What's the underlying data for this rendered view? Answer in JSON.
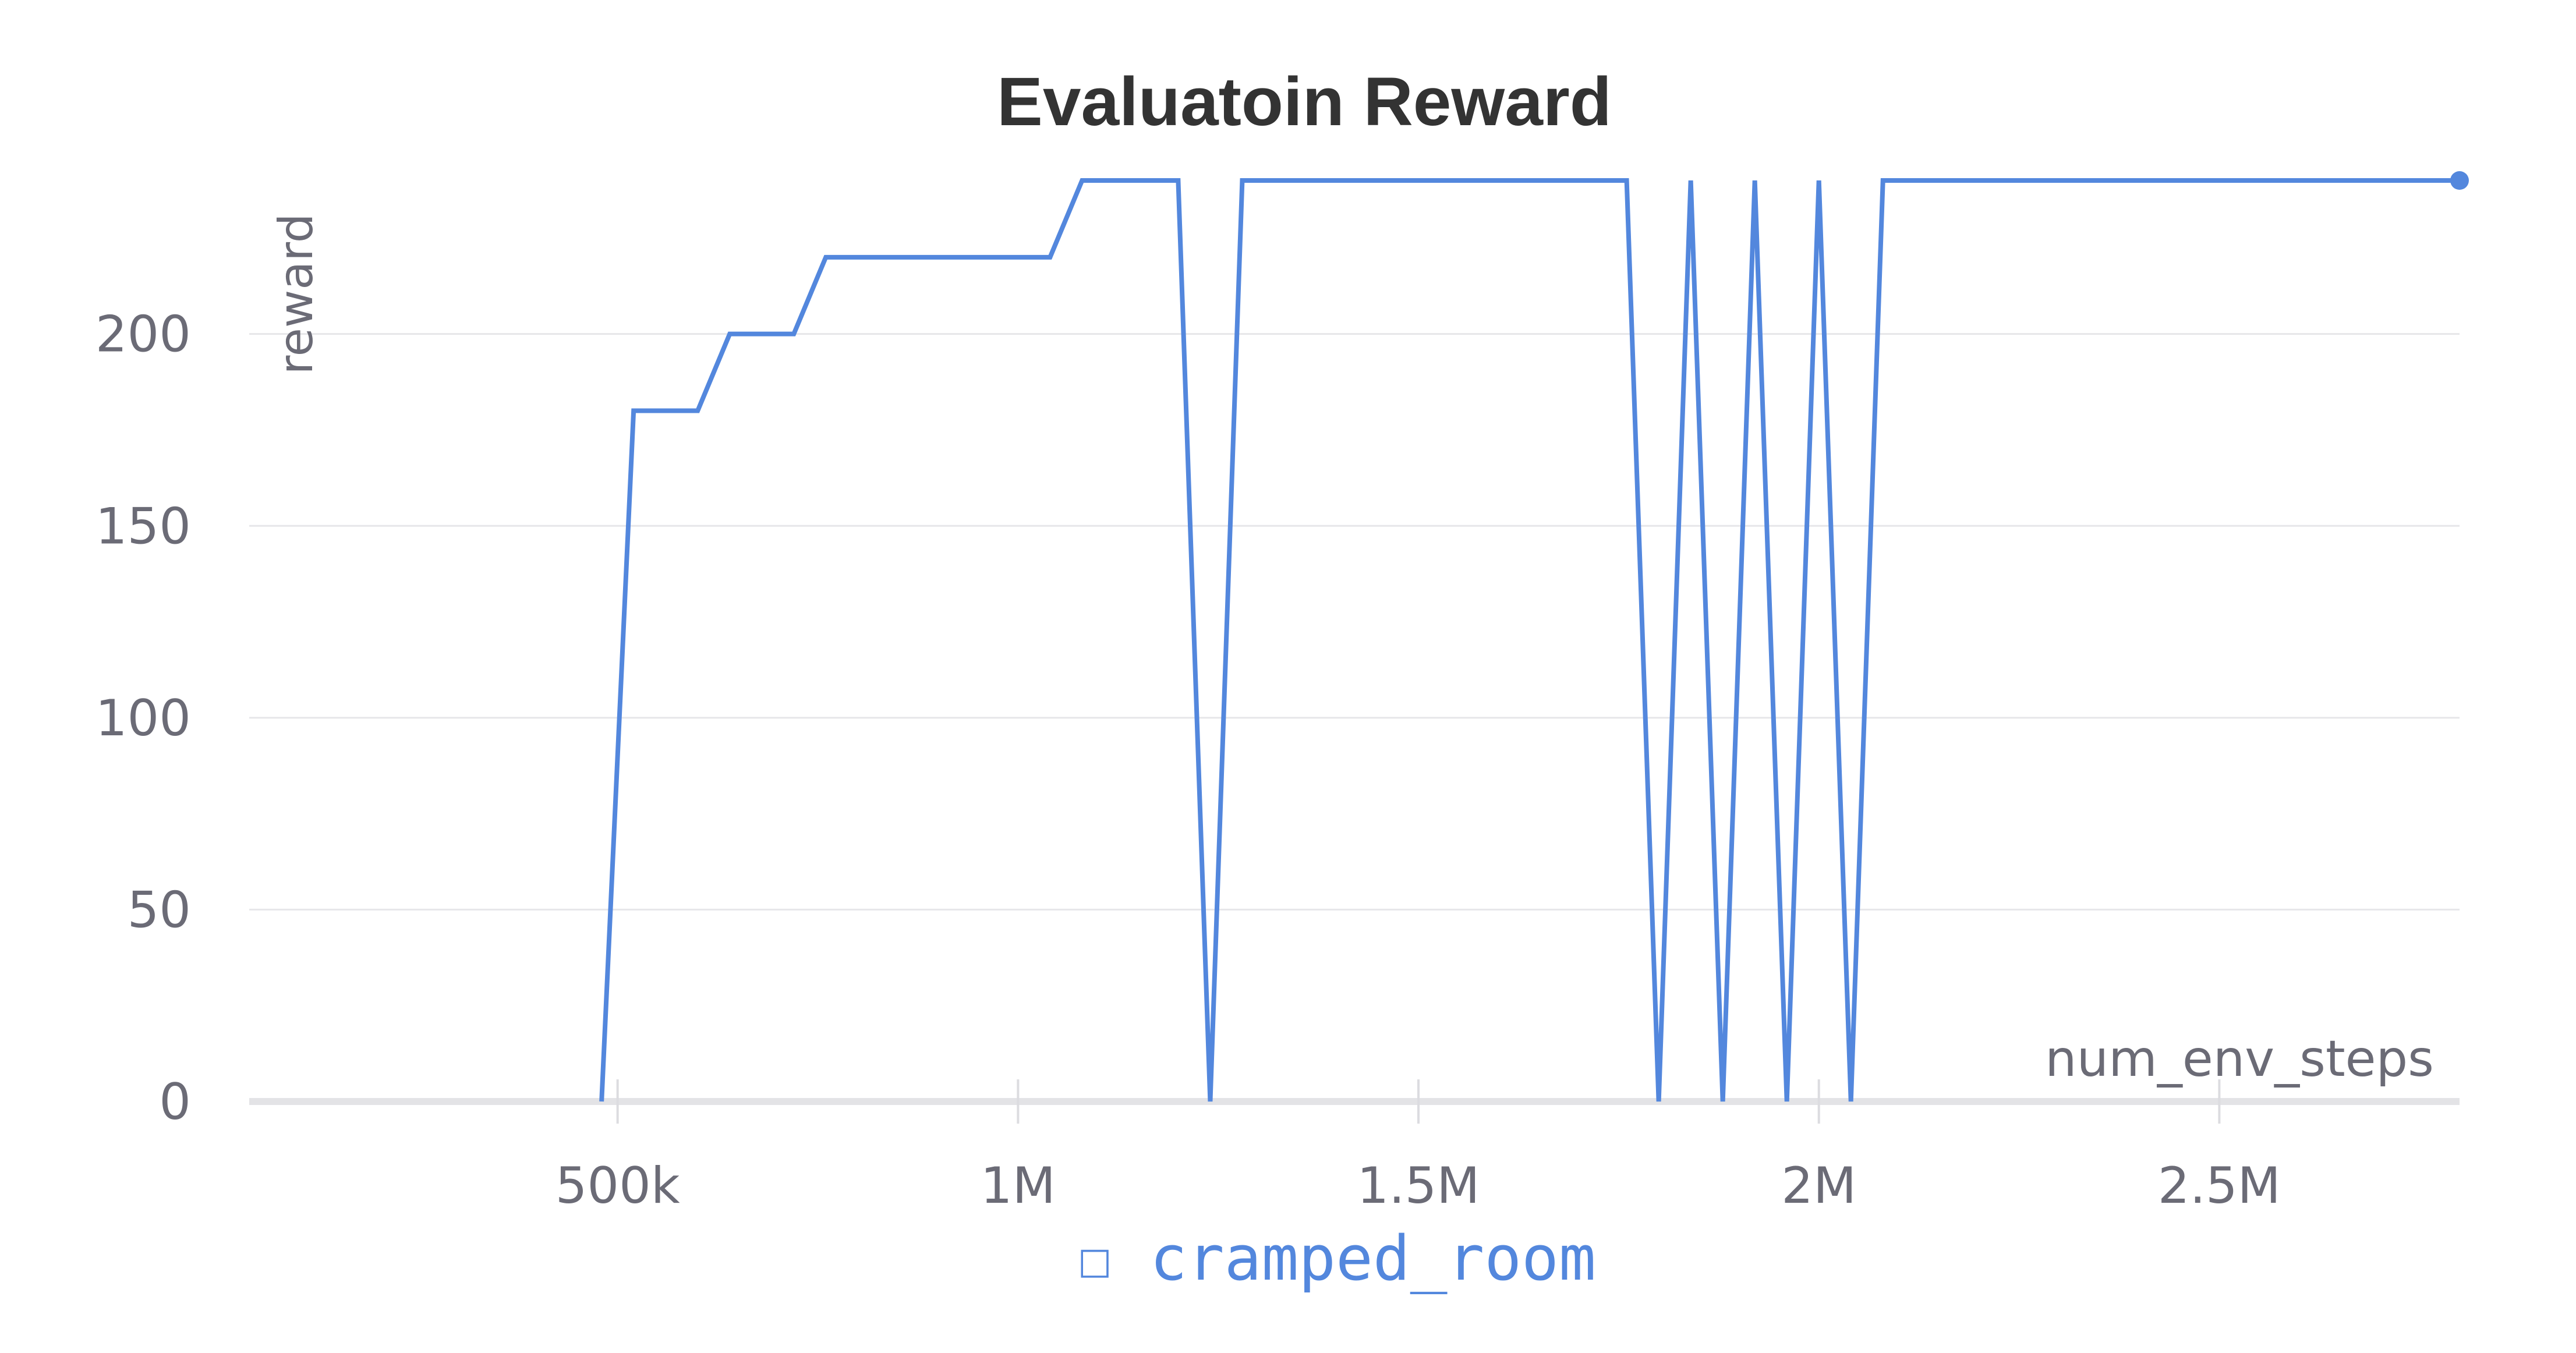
{
  "chart_data": {
    "type": "line",
    "title": "Evaluatoin Reward",
    "xlabel": "num_env_steps",
    "ylabel": "reward",
    "xlim": [
      40000,
      2800000
    ],
    "ylim": [
      0,
      240
    ],
    "x_ticks": [
      {
        "value": 500000,
        "label": "500k"
      },
      {
        "value": 1000000,
        "label": "1M"
      },
      {
        "value": 1500000,
        "label": "1.5M"
      },
      {
        "value": 2000000,
        "label": "2M"
      },
      {
        "value": 2500000,
        "label": "2.5M"
      }
    ],
    "y_ticks": [
      {
        "value": 0,
        "label": "0"
      },
      {
        "value": 50,
        "label": "50"
      },
      {
        "value": 100,
        "label": "100"
      },
      {
        "value": 150,
        "label": "150"
      },
      {
        "value": 200,
        "label": "200"
      }
    ],
    "grid": true,
    "legend": {
      "placement": "bottom-center",
      "marker": "☐"
    },
    "series": [
      {
        "name": "cramped_room",
        "color": "#5387dd",
        "x": [
          480000,
          520000,
          600000,
          640000,
          720000,
          760000,
          1040000,
          1080000,
          1200000,
          1240000,
          1280000,
          1760000,
          1800000,
          1840000,
          1880000,
          1920000,
          1960000,
          2000000,
          2040000,
          2080000,
          2800000
        ],
        "y": [
          0,
          180,
          180,
          200,
          200,
          220,
          220,
          240,
          240,
          0,
          240,
          240,
          0,
          240,
          0,
          240,
          0,
          240,
          0,
          240,
          240
        ]
      }
    ]
  }
}
